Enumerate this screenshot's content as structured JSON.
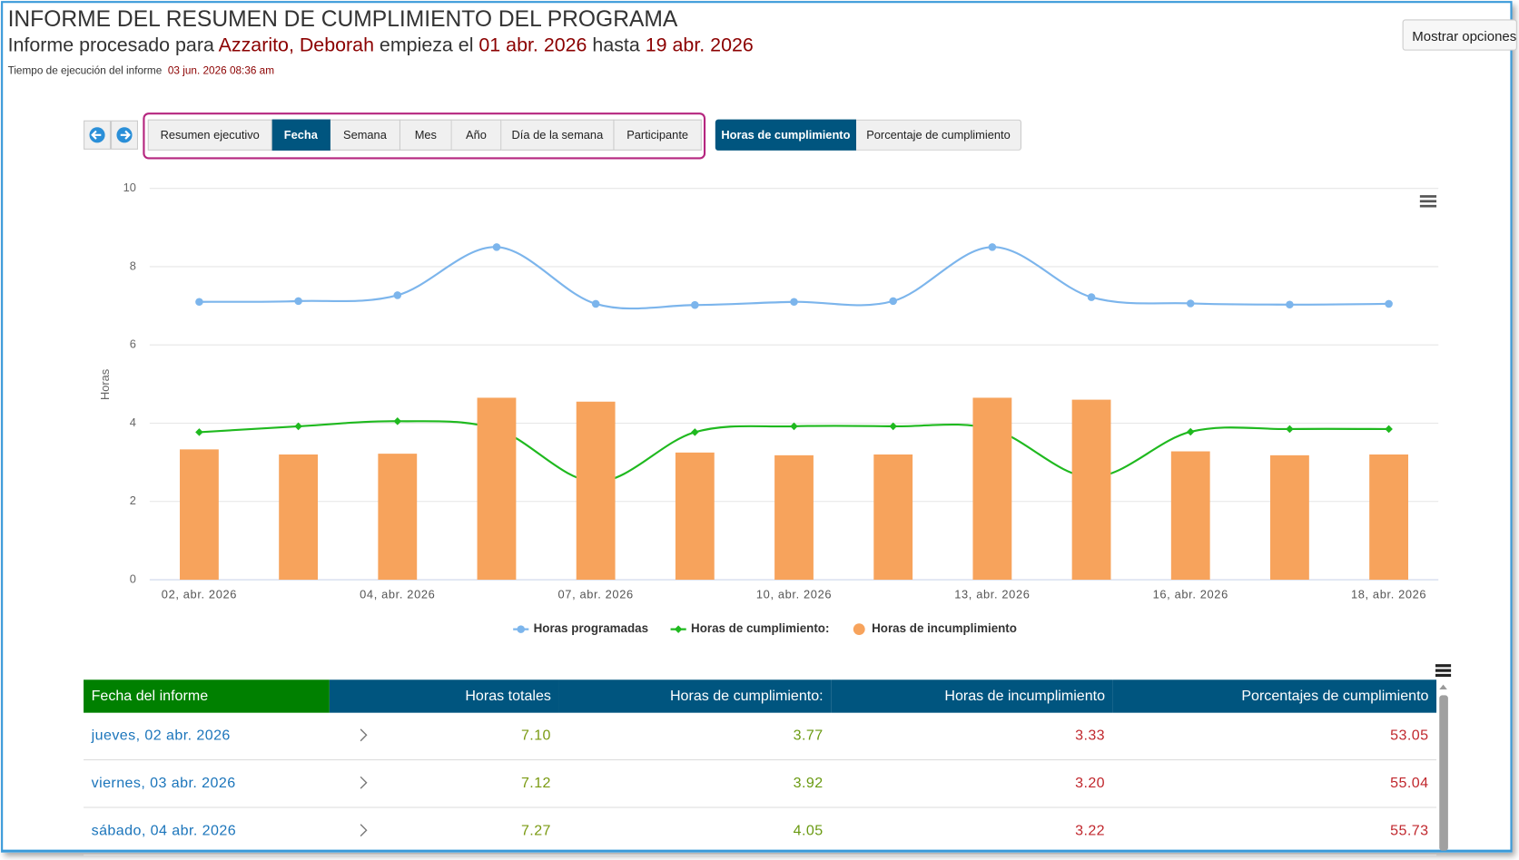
{
  "header": {
    "title": "INFORME DEL RESUMEN DE CUMPLIMIENTO DEL PROGRAMA",
    "subtitle_prefix": "Informe procesado para",
    "participant": "Azzarito, Deborah",
    "starts_label": "empieza el",
    "start_date": "01 abr. 2026",
    "until_label": "hasta",
    "end_date": "19 abr. 2026",
    "run_time_label": "Tiempo de ejecución del informe",
    "run_time": "03 jun. 2026 08:36 am",
    "options_button": "Mostrar opciones"
  },
  "tabs": [
    "Resumen ejecutivo",
    "Fecha",
    "Semana",
    "Mes",
    "Año",
    "Día de la semana",
    "Participante"
  ],
  "active_tab": 1,
  "metric_tabs": [
    "Horas de cumplimiento",
    "Porcentaje de cumplimiento"
  ],
  "active_metric": 0,
  "chart_data": {
    "type": "combo",
    "y_label": "Horas",
    "categories": [
      "02, abr. 2026",
      null,
      "04, abr. 2026",
      null,
      "07, abr. 2026",
      null,
      "10, abr. 2026",
      null,
      "13, abr. 2026",
      null,
      "16, abr. 2026",
      null,
      "18, abr. 2026"
    ],
    "series": [
      {
        "name": "Horas programadas",
        "kind": "line",
        "color": "#7cb5ec",
        "values": [
          7.1,
          7.12,
          7.27,
          8.5,
          7.05,
          7.02,
          7.1,
          7.12,
          8.5,
          7.22,
          7.06,
          7.03,
          7.05
        ]
      },
      {
        "name": "Horas de cumplimiento:",
        "kind": "line",
        "color": "#1fb91f",
        "values": [
          3.77,
          3.92,
          4.05,
          3.85,
          2.5,
          3.77,
          3.92,
          3.92,
          3.85,
          2.62,
          3.78,
          3.85,
          3.85
        ]
      },
      {
        "name": "Horas de incumplimiento",
        "kind": "bar",
        "color": "#f7a35c",
        "values": [
          3.33,
          3.2,
          3.22,
          4.65,
          4.55,
          3.25,
          3.18,
          3.2,
          4.65,
          4.6,
          3.28,
          3.18,
          3.2
        ]
      }
    ],
    "ylim": [
      0,
      10
    ],
    "yticks": [
      0,
      2,
      4,
      6,
      8,
      10
    ],
    "grid": true
  },
  "table": {
    "columns": [
      "Fecha del informe",
      "Horas totales",
      "Horas de cumplimiento:",
      "Horas de incumplimiento",
      "Porcentajes de cumplimiento"
    ],
    "rows": [
      [
        "jueves, 02 abr. 2026",
        "7.10",
        "3.77",
        "3.33",
        "53.05"
      ],
      [
        "viernes, 03 abr. 2026",
        "7.12",
        "3.92",
        "3.20",
        "55.04"
      ],
      [
        "sábado, 04 abr. 2026",
        "7.27",
        "4.05",
        "3.22",
        "55.73"
      ]
    ]
  }
}
